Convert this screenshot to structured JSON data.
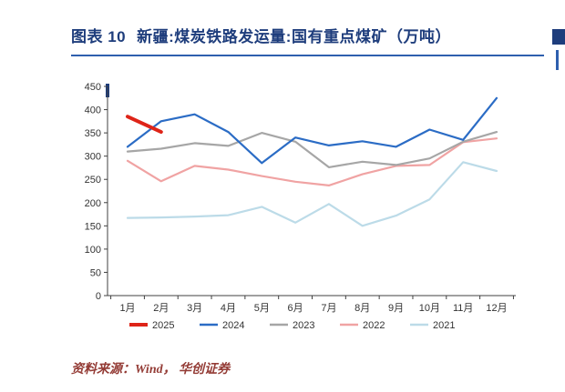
{
  "header": {
    "figure_label": "图表 10",
    "title": "新疆:煤炭铁路发运量:国有重点煤矿（万吨）"
  },
  "source": {
    "text": "资料来源：Wind， 华创证券"
  },
  "palette": {
    "title_blue": "#1e3d7c",
    "rule_blue": "#2e5fae",
    "source_red": "#943c36",
    "axis_gray": "#404040",
    "label_gray": "#333333"
  },
  "chart_data": {
    "type": "line",
    "title": "新疆:煤炭铁路发运量:国有重点煤矿（万吨）",
    "xlabel": "",
    "ylabel": "",
    "ylim": [
      0,
      450
    ],
    "grid": false,
    "legend_position": "bottom",
    "y_ticks": [
      0,
      50,
      100,
      150,
      200,
      250,
      300,
      350,
      400,
      450
    ],
    "categories": [
      "1月",
      "2月",
      "3月",
      "4月",
      "5月",
      "6月",
      "7月",
      "8月",
      "9月",
      "10月",
      "11月",
      "12月"
    ],
    "series": [
      {
        "name": "2025",
        "color": "#de2418",
        "width": 4,
        "values": [
          385,
          352
        ]
      },
      {
        "name": "2024",
        "color": "#2b6cc5",
        "width": 2.2,
        "values": [
          320,
          375,
          390,
          352,
          285,
          340,
          323,
          332,
          320,
          357,
          335,
          425
        ]
      },
      {
        "name": "2023",
        "color": "#a6a6a6",
        "width": 2.2,
        "values": [
          310,
          316,
          328,
          322,
          350,
          331,
          276,
          288,
          281,
          295,
          331,
          352
        ]
      },
      {
        "name": "2022",
        "color": "#f0a3a3",
        "width": 2.2,
        "values": [
          290,
          246,
          279,
          271,
          257,
          245,
          237,
          261,
          279,
          281,
          330,
          338
        ]
      },
      {
        "name": "2021",
        "color": "#bcdbe8",
        "width": 2.2,
        "values": [
          167,
          168,
          170,
          173,
          191,
          157,
          197,
          150,
          172,
          207,
          287,
          268
        ]
      }
    ]
  }
}
